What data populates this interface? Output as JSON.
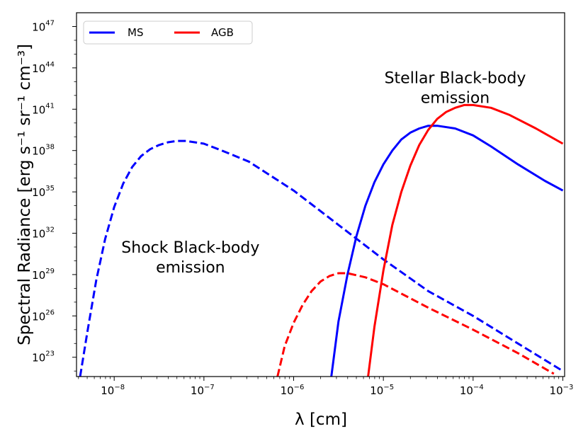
{
  "chart_data": {
    "type": "line",
    "title": "",
    "xlabel": "λ [cm]",
    "ylabel": "Spectral Radiance [erg s⁻¹ sr⁻¹ cm⁻³]",
    "x_scale": "log",
    "y_scale": "log",
    "xlim_log10": [
      -8.42,
      -2.98
    ],
    "ylim_log10": [
      21.6,
      48.0
    ],
    "x_ticks": [
      {
        "base": "10",
        "exp": "−8",
        "log10": -8
      },
      {
        "base": "10",
        "exp": "−7",
        "log10": -7
      },
      {
        "base": "10",
        "exp": "−6",
        "log10": -6
      },
      {
        "base": "10",
        "exp": "−5",
        "log10": -5
      },
      {
        "base": "10",
        "exp": "−4",
        "log10": -4
      },
      {
        "base": "10",
        "exp": "−3",
        "log10": -3
      }
    ],
    "y_ticks": [
      {
        "base": "10",
        "exp": "23",
        "log10": 23
      },
      {
        "base": "10",
        "exp": "26",
        "log10": 26
      },
      {
        "base": "10",
        "exp": "29",
        "log10": 29
      },
      {
        "base": "10",
        "exp": "32",
        "log10": 32
      },
      {
        "base": "10",
        "exp": "35",
        "log10": 35
      },
      {
        "base": "10",
        "exp": "38",
        "log10": 38
      },
      {
        "base": "10",
        "exp": "41",
        "log10": 41
      },
      {
        "base": "10",
        "exp": "44",
        "log10": 44
      },
      {
        "base": "10",
        "exp": "47",
        "log10": 47
      }
    ],
    "legend": {
      "location": "top-left",
      "entries": [
        {
          "label": "MS",
          "color": "#0000ff"
        },
        {
          "label": "AGB",
          "color": "#ff0000"
        }
      ]
    },
    "annotations": [
      {
        "lines": [
          "Stellar Black-body",
          "emission"
        ],
        "x_log10": -4.2,
        "y_log10": 42.9
      },
      {
        "lines": [
          "Shock Black-body",
          "emission"
        ],
        "x_log10": -7.15,
        "y_log10": 30.6
      }
    ],
    "series": [
      {
        "name": "MS shock",
        "legend": "MS",
        "color": "#0000ff",
        "dash": true,
        "points_log10": [
          [
            -8.38,
            21.6
          ],
          [
            -8.3,
            24.8
          ],
          [
            -8.2,
            28.6
          ],
          [
            -8.1,
            31.6
          ],
          [
            -8.0,
            33.9
          ],
          [
            -7.9,
            35.6
          ],
          [
            -7.8,
            36.8
          ],
          [
            -7.7,
            37.6
          ],
          [
            -7.6,
            38.1
          ],
          [
            -7.5,
            38.4
          ],
          [
            -7.4,
            38.6
          ],
          [
            -7.3,
            38.7
          ],
          [
            -7.2,
            38.7
          ],
          [
            -7.0,
            38.5
          ],
          [
            -6.8,
            38.0
          ],
          [
            -6.5,
            37.2
          ],
          [
            -6.0,
            35.1
          ],
          [
            -5.5,
            32.6
          ],
          [
            -5.0,
            30.1
          ],
          [
            -4.5,
            27.8
          ],
          [
            -4.0,
            26.0
          ],
          [
            -3.5,
            24.0
          ],
          [
            -3.0,
            22.0
          ]
        ]
      },
      {
        "name": "MS stellar",
        "legend": "MS",
        "color": "#0000ff",
        "dash": false,
        "points_log10": [
          [
            -5.58,
            21.6
          ],
          [
            -5.5,
            25.6
          ],
          [
            -5.4,
            29.0
          ],
          [
            -5.3,
            31.8
          ],
          [
            -5.2,
            34.0
          ],
          [
            -5.1,
            35.7
          ],
          [
            -5.0,
            37.0
          ],
          [
            -4.9,
            38.0
          ],
          [
            -4.8,
            38.8
          ],
          [
            -4.7,
            39.3
          ],
          [
            -4.6,
            39.6
          ],
          [
            -4.5,
            39.8
          ],
          [
            -4.4,
            39.8
          ],
          [
            -4.2,
            39.6
          ],
          [
            -4.0,
            39.1
          ],
          [
            -3.8,
            38.3
          ],
          [
            -3.5,
            37.0
          ],
          [
            -3.2,
            35.8
          ],
          [
            -3.0,
            35.1
          ]
        ]
      },
      {
        "name": "AGB shock",
        "legend": "AGB",
        "color": "#ff0000",
        "dash": true,
        "points_log10": [
          [
            -6.18,
            21.6
          ],
          [
            -6.1,
            23.8
          ],
          [
            -6.0,
            25.5
          ],
          [
            -5.9,
            26.8
          ],
          [
            -5.8,
            27.8
          ],
          [
            -5.7,
            28.5
          ],
          [
            -5.6,
            28.9
          ],
          [
            -5.5,
            29.1
          ],
          [
            -5.4,
            29.1
          ],
          [
            -5.2,
            28.8
          ],
          [
            -5.0,
            28.3
          ],
          [
            -4.5,
            26.6
          ],
          [
            -4.0,
            25.0
          ],
          [
            -3.5,
            23.3
          ],
          [
            -3.1,
            21.8
          ]
        ]
      },
      {
        "name": "AGB stellar",
        "legend": "AGB",
        "color": "#ff0000",
        "dash": false,
        "points_log10": [
          [
            -5.17,
            21.6
          ],
          [
            -5.1,
            25.2
          ],
          [
            -5.0,
            29.3
          ],
          [
            -4.9,
            32.6
          ],
          [
            -4.8,
            35.0
          ],
          [
            -4.7,
            36.9
          ],
          [
            -4.6,
            38.4
          ],
          [
            -4.5,
            39.5
          ],
          [
            -4.4,
            40.3
          ],
          [
            -4.3,
            40.8
          ],
          [
            -4.2,
            41.1
          ],
          [
            -4.1,
            41.3
          ],
          [
            -4.0,
            41.3
          ],
          [
            -3.8,
            41.1
          ],
          [
            -3.6,
            40.6
          ],
          [
            -3.3,
            39.6
          ],
          [
            -3.0,
            38.5
          ]
        ]
      }
    ]
  }
}
